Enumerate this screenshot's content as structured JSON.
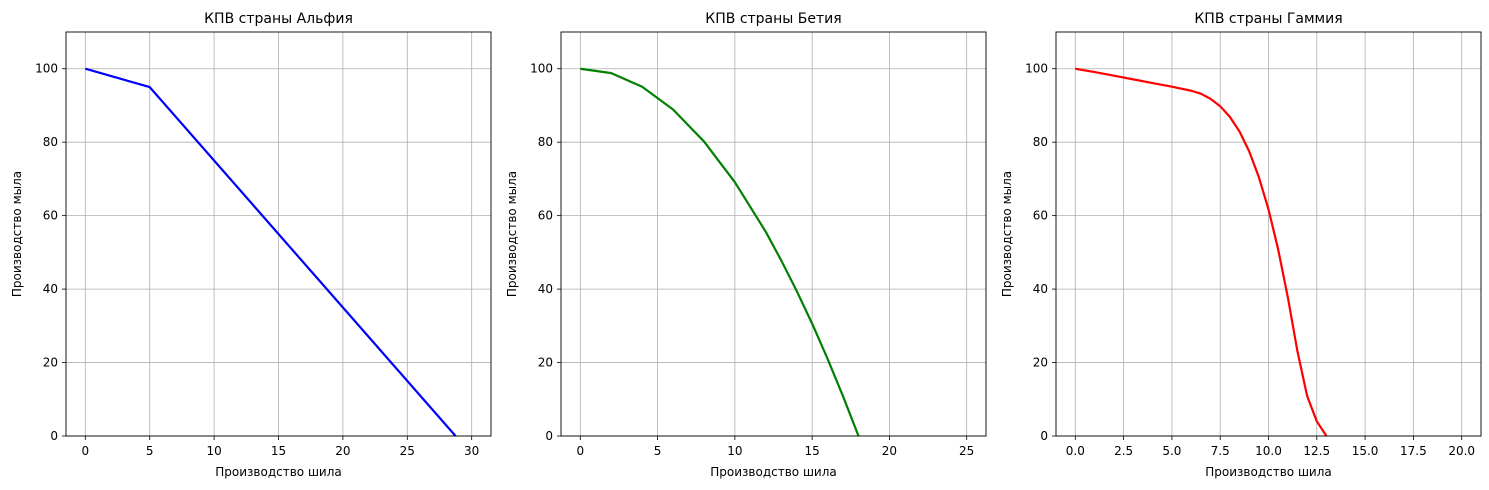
{
  "chart_data": [
    {
      "type": "line",
      "title": "КПВ страны Альфия",
      "xlabel": "Производство шила",
      "ylabel": "Производство мыла",
      "xlim": [
        -1.5,
        31.5
      ],
      "ylim": [
        0,
        110
      ],
      "xticks": [
        0,
        5,
        10,
        15,
        20,
        25,
        30
      ],
      "xtick_labels": [
        "0",
        "5",
        "10",
        "15",
        "20",
        "25",
        "30"
      ],
      "yticks": [
        0,
        20,
        40,
        60,
        80,
        100
      ],
      "ytick_labels": [
        "0",
        "20",
        "40",
        "60",
        "80",
        "100"
      ],
      "grid": true,
      "series": [
        {
          "color": "#0000ff",
          "x": [
            0,
            5,
            28.75
          ],
          "y": [
            100,
            95,
            0
          ]
        }
      ]
    },
    {
      "type": "line",
      "title": "КПВ страны Бетия",
      "xlabel": "Производство шила",
      "ylabel": "Производство мыла",
      "xlim": [
        -1.25,
        26.25
      ],
      "ylim": [
        0,
        110
      ],
      "xticks": [
        0,
        5,
        10,
        15,
        20,
        25
      ],
      "xtick_labels": [
        "0",
        "5",
        "10",
        "15",
        "20",
        "25"
      ],
      "yticks": [
        0,
        20,
        40,
        60,
        80,
        100
      ],
      "ytick_labels": [
        "0",
        "20",
        "40",
        "60",
        "80",
        "100"
      ],
      "grid": true,
      "series": [
        {
          "color": "#008000",
          "x": [
            0,
            2,
            4,
            6,
            8,
            10,
            12,
            13,
            14,
            15,
            16,
            17,
            18
          ],
          "y": [
            100,
            98.8,
            95.1,
            88.9,
            80.2,
            69.1,
            55.6,
            47.8,
            39.5,
            30.6,
            21.0,
            10.8,
            0
          ]
        }
      ]
    },
    {
      "type": "line",
      "title": "КПВ страны Гаммия",
      "xlabel": "Производство шила",
      "ylabel": "Производство мыла",
      "xlim": [
        -1.0,
        21.0
      ],
      "ylim": [
        0,
        110
      ],
      "xticks": [
        0,
        2.5,
        5,
        7.5,
        10,
        12.5,
        15,
        17.5,
        20
      ],
      "xtick_labels": [
        "0.0",
        "2.5",
        "5.0",
        "7.5",
        "10.0",
        "12.5",
        "15.0",
        "17.5",
        "20.0"
      ],
      "yticks": [
        0,
        20,
        40,
        60,
        80,
        100
      ],
      "ytick_labels": [
        "0",
        "20",
        "40",
        "60",
        "80",
        "100"
      ],
      "grid": true,
      "series": [
        {
          "color": "#ff0000",
          "x": [
            0,
            1,
            2,
            3,
            4,
            5,
            6,
            6.5,
            7,
            7.5,
            8,
            8.5,
            9,
            9.5,
            10,
            10.5,
            11,
            11.5,
            12,
            12.5,
            13
          ],
          "y": [
            100,
            99.1,
            98.1,
            97.1,
            96.1,
            95.1,
            94.0,
            93.2,
            91.8,
            89.8,
            86.9,
            82.9,
            77.5,
            70.5,
            61.7,
            50.8,
            37.8,
            23.0,
            10.9,
            4.0,
            0
          ]
        }
      ]
    }
  ]
}
